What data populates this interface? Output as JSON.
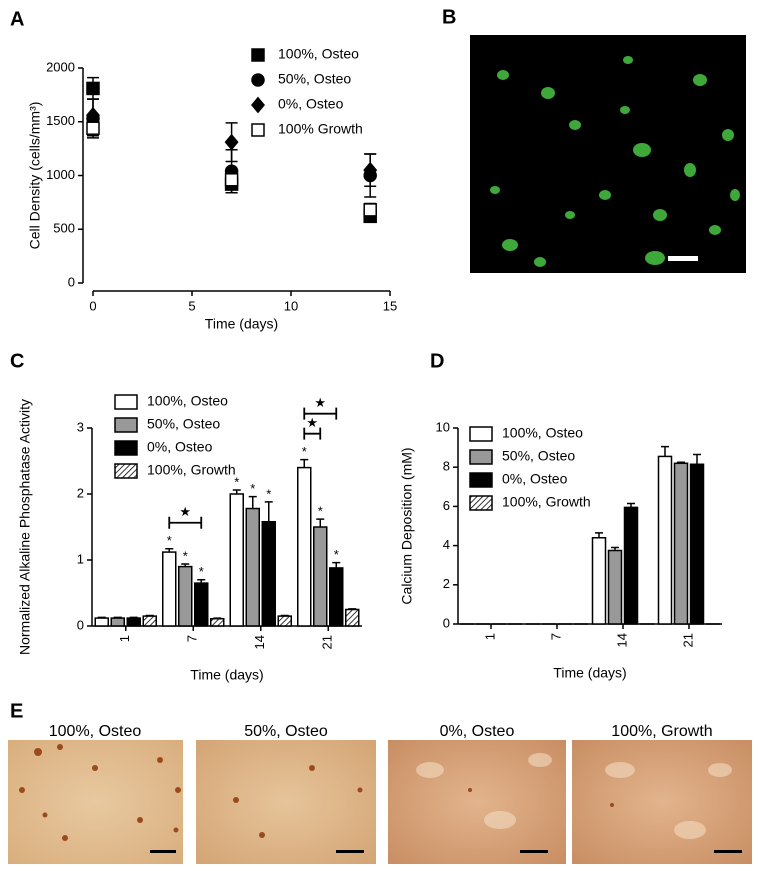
{
  "chart_data": [
    {
      "type": "scatter",
      "panel": "A",
      "xlabel": "Time (days)",
      "ylabel": "Cell Density (cells/mm³)",
      "x": [
        0,
        7,
        14
      ],
      "xlim": [
        0,
        15
      ],
      "xticks": [
        0,
        5,
        10,
        15
      ],
      "ylim": [
        0,
        2000
      ],
      "yticks": [
        0,
        500,
        1000,
        1500,
        2000
      ],
      "series": [
        {
          "name": "100%, Osteo",
          "marker": "square",
          "color": "#000000",
          "values": [
            1810,
            920,
            620
          ],
          "errors": [
            100,
            80,
            50
          ]
        },
        {
          "name": "50%, Osteo",
          "marker": "circle",
          "color": "#000000",
          "values": [
            1530,
            1040,
            1000
          ],
          "errors": [
            180,
            200,
            200
          ]
        },
        {
          "name": "0%, Osteo",
          "marker": "diamond",
          "color": "#000000",
          "values": [
            1560,
            1310,
            1050
          ],
          "errors": [
            150,
            180,
            150
          ]
        },
        {
          "name": "100% Growth",
          "marker": "open-square",
          "color": "#000000",
          "values": [
            1440,
            960,
            680
          ],
          "errors": [
            70,
            80,
            60
          ]
        }
      ]
    },
    {
      "type": "bar",
      "panel": "C",
      "xlabel": "Time (days)",
      "ylabel": "Normalized Alkaline Phosphatase Activity",
      "categories": [
        "1",
        "7",
        "14",
        "21"
      ],
      "ylim": [
        0,
        3
      ],
      "yticks": [
        0,
        1,
        2,
        3
      ],
      "series": [
        {
          "name": "100%, Osteo",
          "color": "#ffffff",
          "values": [
            0.12,
            1.12,
            2.0,
            2.4
          ],
          "errors": [
            0.01,
            0.05,
            0.06,
            0.12
          ],
          "sig": [
            null,
            "*",
            "*",
            "*"
          ]
        },
        {
          "name": "50%, Osteo",
          "color": "#999999",
          "values": [
            0.12,
            0.9,
            1.78,
            1.5
          ],
          "errors": [
            0.01,
            0.04,
            0.18,
            0.12
          ],
          "sig": [
            null,
            "*",
            "*",
            "*"
          ]
        },
        {
          "name": "0%, Osteo",
          "color": "#000000",
          "values": [
            0.12,
            0.65,
            1.58,
            0.88
          ],
          "errors": [
            0.01,
            0.05,
            0.3,
            0.08
          ],
          "sig": [
            null,
            "*",
            "*",
            "*"
          ]
        },
        {
          "name": "100%, Growth",
          "color": "hatch",
          "values": [
            0.15,
            0.11,
            0.15,
            0.25
          ],
          "errors": [
            0.01,
            0.01,
            0.01,
            0.01
          ]
        }
      ],
      "brackets": [
        {
          "label": "★",
          "category": 1,
          "from": 0,
          "to": 2
        },
        {
          "label": "★",
          "category": 3,
          "from": 0,
          "to": 1
        },
        {
          "label": "★",
          "category": 3,
          "from": 0,
          "to": 2
        }
      ]
    },
    {
      "type": "bar",
      "panel": "D",
      "xlabel": "Time (days)",
      "ylabel": "Calcium Deposition (mM)",
      "categories": [
        "1",
        "7",
        "14",
        "21"
      ],
      "ylim": [
        0,
        10
      ],
      "yticks": [
        0,
        2,
        4,
        6,
        8,
        10
      ],
      "series": [
        {
          "name": "100%, Osteo",
          "color": "#ffffff",
          "values": [
            0,
            0,
            4.4,
            8.55
          ],
          "errors": [
            null,
            null,
            0.25,
            0.5
          ]
        },
        {
          "name": "50%, Osteo",
          "color": "#999999",
          "values": [
            0,
            0,
            3.75,
            8.2
          ],
          "errors": [
            null,
            null,
            0.15,
            0.05
          ]
        },
        {
          "name": "0%, Osteo",
          "color": "#000000",
          "values": [
            0,
            0,
            5.95,
            8.15
          ],
          "errors": [
            null,
            null,
            0.2,
            0.5
          ]
        },
        {
          "name": "100%, Growth",
          "color": "hatch",
          "values": [
            0,
            0,
            0,
            0
          ],
          "errors": [
            null,
            null,
            null,
            null
          ]
        }
      ]
    }
  ],
  "panel_b": {
    "label": "B"
  },
  "panel_e": {
    "label": "E",
    "captions": [
      "100%, Osteo",
      "50%, Osteo",
      "0%, Osteo",
      "100%, Growth"
    ]
  }
}
